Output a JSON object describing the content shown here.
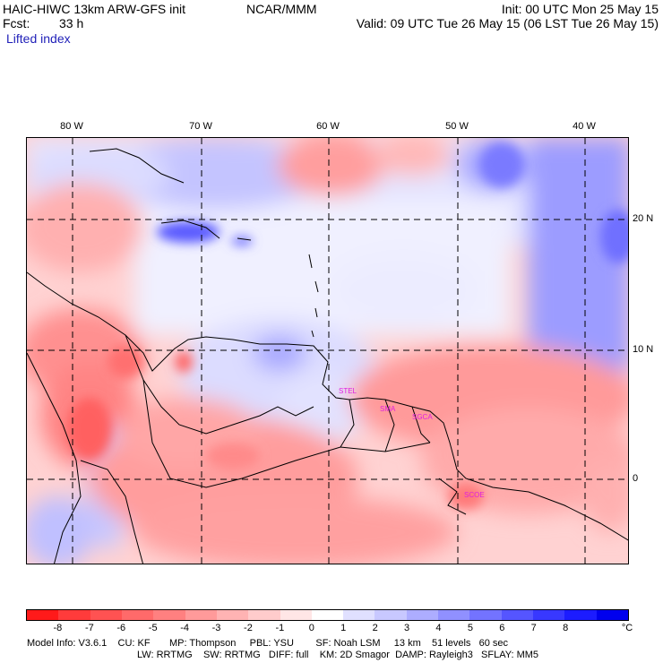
{
  "header": {
    "title": "HAIC-HIWC 13km ARW-GFS init",
    "org": "NCAR/MMM",
    "init": "Init: 00 UTC Mon 25 May 15",
    "fcst_label": "Fcst:",
    "fcst_value": "33 h",
    "valid": "Valid: 09 UTC Tue 26 May 15 (06 LST Tue 26 May 15)",
    "field": "Lifted index"
  },
  "map": {
    "lon_labels": [
      "80 W",
      "70 W",
      "60 W",
      "50 W",
      "40 W"
    ],
    "lat_labels": [
      "20 N",
      "10 N",
      "0"
    ],
    "sites": [
      "STEL",
      "SMA",
      "SGCA",
      "SCOE"
    ]
  },
  "colorbar": {
    "ticks": [
      "-8",
      "-7",
      "-6",
      "-5",
      "-4",
      "-3",
      "-2",
      "-1",
      "0",
      "1",
      "2",
      "3",
      "4",
      "5",
      "6",
      "7",
      "8"
    ],
    "unit": "°C",
    "colors": [
      "#ff1a1a",
      "#ff3b3b",
      "#ff5252",
      "#ff6a6a",
      "#ff8080",
      "#ff9a9a",
      "#ffb3b3",
      "#ffcccc",
      "#ffe6e6",
      "#ffffff",
      "#e0e0ff",
      "#c8c8ff",
      "#adadff",
      "#9090ff",
      "#7373ff",
      "#5555ff",
      "#3838ff",
      "#1c1cff",
      "#0000ee"
    ]
  },
  "footer": {
    "line1": "Model Info: V3.6.1    CU: KF       MP: Thompson     PBL: YSU        SF: Noah LSM     13 km    51 levels   60 sec",
    "line2": "LW: RRTMG    SW: RRTMG   DIFF: full    KM: 2D Smagor  DAMP: Rayleigh3   SFLAY: MM5"
  }
}
